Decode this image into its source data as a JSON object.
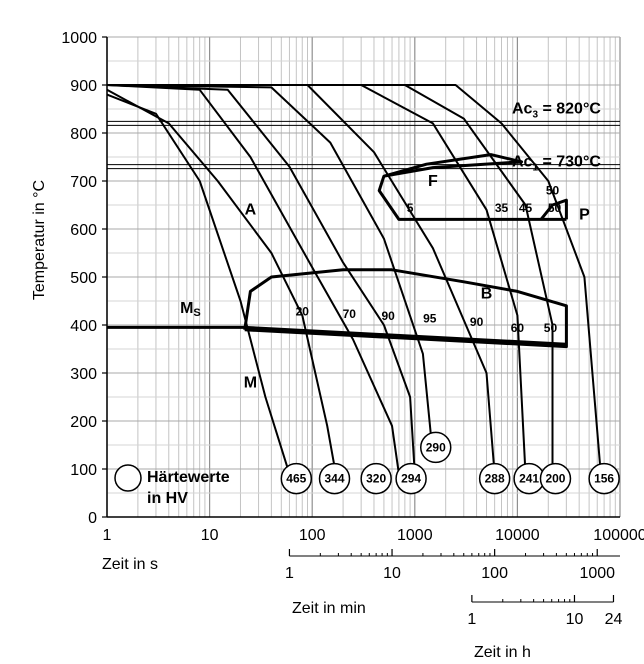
{
  "chart_data": {
    "type": "line",
    "title": "",
    "xlabel": "Zeit in s",
    "ylabel": "Temperatur in °C",
    "xscale": "log",
    "xlim": [
      1,
      100000
    ],
    "ylim": [
      0,
      1000
    ],
    "grid": true,
    "x_ticks": [
      "1",
      "10",
      "100",
      "1000",
      "10000",
      "100000"
    ],
    "y_ticks": [
      "0",
      "100",
      "200",
      "300",
      "400",
      "500",
      "600",
      "700",
      "800",
      "900",
      "1000"
    ],
    "secondary_axes": [
      {
        "label": "Zeit in min",
        "ticks": [
          {
            "text": "1",
            "x": 60
          },
          {
            "text": "10",
            "x": 600
          },
          {
            "text": "100",
            "x": 6000
          },
          {
            "text": "1000",
            "x": 60000
          }
        ]
      },
      {
        "label": "Zeit in h",
        "ticks": [
          {
            "text": "1",
            "x": 3600
          },
          {
            "text": "10",
            "x": 36000
          },
          {
            "text": "24",
            "x": 86400
          }
        ]
      }
    ],
    "hlines": [
      {
        "y": 820,
        "label": "Ac3 = 820°C",
        "text_main": "Ac",
        "text_sub": "3",
        "text_rest": " = 820°C"
      },
      {
        "y": 730,
        "label": "Ac1 = 730°C",
        "text_main": "Ac",
        "text_sub": "1",
        "text_rest": " = 730°C"
      }
    ],
    "series": [
      {
        "points": [
          [
            1,
            880
          ],
          [
            3,
            840
          ],
          [
            8,
            700
          ],
          [
            20,
            450
          ],
          [
            35,
            250
          ],
          [
            60,
            90
          ]
        ]
      },
      {
        "points": [
          [
            1,
            890
          ],
          [
            4,
            820
          ],
          [
            12,
            700
          ],
          [
            40,
            550
          ],
          [
            80,
            420
          ],
          [
            140,
            190
          ],
          [
            170,
            90
          ]
        ]
      },
      {
        "points": [
          [
            1,
            900
          ],
          [
            8,
            890
          ],
          [
            25,
            750
          ],
          [
            100,
            520
          ],
          [
            250,
            370
          ],
          [
            600,
            190
          ],
          [
            700,
            90
          ]
        ]
      },
      {
        "points": [
          [
            1,
            900
          ],
          [
            15,
            890
          ],
          [
            60,
            730
          ],
          [
            200,
            530
          ],
          [
            500,
            400
          ],
          [
            900,
            250
          ],
          [
            1000,
            90
          ]
        ]
      },
      {
        "points": [
          [
            1,
            900
          ],
          [
            40,
            895
          ],
          [
            150,
            780
          ],
          [
            500,
            580
          ],
          [
            1200,
            340
          ],
          [
            1450,
            160
          ]
        ]
      },
      {
        "points": [
          [
            1,
            900
          ],
          [
            90,
            900
          ],
          [
            400,
            760
          ],
          [
            1500,
            560
          ],
          [
            5000,
            300
          ],
          [
            6000,
            90
          ]
        ]
      },
      {
        "points": [
          [
            1,
            900
          ],
          [
            300,
            900
          ],
          [
            1500,
            820
          ],
          [
            5000,
            640
          ],
          [
            10000,
            420
          ],
          [
            12000,
            90
          ]
        ]
      },
      {
        "points": [
          [
            1,
            900
          ],
          [
            800,
            900
          ],
          [
            3000,
            830
          ],
          [
            12000,
            650
          ],
          [
            22000,
            400
          ],
          [
            22000,
            90
          ]
        ]
      },
      {
        "points": [
          [
            1,
            900
          ],
          [
            2500,
            900
          ],
          [
            7000,
            820
          ],
          [
            20000,
            700
          ],
          [
            45000,
            500
          ],
          [
            65000,
            90
          ]
        ]
      }
    ],
    "regions": [
      {
        "name": "A",
        "label_at": [
          25,
          630
        ]
      },
      {
        "name": "F",
        "label_at": [
          1500,
          690
        ],
        "boundary": [
          [
            500,
            710
          ],
          [
            1300,
            735
          ],
          [
            5500,
            755
          ],
          [
            11000,
            740
          ],
          [
            1500,
            728
          ],
          [
            500,
            710
          ],
          [
            450,
            680
          ],
          [
            700,
            620
          ],
          [
            30000,
            620
          ]
        ]
      },
      {
        "name": "P",
        "label_at": [
          45000,
          620
        ],
        "boundary": [
          [
            17000,
            620
          ],
          [
            22000,
            650
          ],
          [
            30000,
            660
          ],
          [
            30000,
            620
          ]
        ]
      },
      {
        "name": "B",
        "label_at": [
          5000,
          455
        ],
        "boundary": [
          [
            22,
            390
          ],
          [
            25,
            470
          ],
          [
            40,
            500
          ],
          [
            200,
            515
          ],
          [
            600,
            515
          ],
          [
            3000,
            490
          ],
          [
            10000,
            470
          ],
          [
            30000,
            440
          ],
          [
            30000,
            355
          ],
          [
            22,
            390
          ]
        ]
      },
      {
        "name": "Ms",
        "label": "MS",
        "label_at": [
          6.5,
          425
        ],
        "line": [
          [
            1,
            395
          ],
          [
            22,
            395
          ],
          [
            30000,
            360
          ]
        ]
      },
      {
        "name": "M",
        "label_at": [
          25,
          270
        ]
      }
    ],
    "percent_labels": [
      {
        "text": "5",
        "at": [
          900,
          635
        ]
      },
      {
        "text": "35",
        "at": [
          7000,
          635
        ]
      },
      {
        "text": "45",
        "at": [
          12000,
          635
        ]
      },
      {
        "text": "50",
        "at": [
          22000,
          672
        ]
      },
      {
        "text": "50",
        "at": [
          23000,
          635
        ]
      },
      {
        "text": "20",
        "at": [
          80,
          420
        ]
      },
      {
        "text": "70",
        "at": [
          230,
          415
        ]
      },
      {
        "text": "90",
        "at": [
          550,
          410
        ]
      },
      {
        "text": "95",
        "at": [
          1400,
          405
        ]
      },
      {
        "text": "90",
        "at": [
          4000,
          398
        ]
      },
      {
        "text": "60",
        "at": [
          10000,
          385
        ]
      },
      {
        "text": "50",
        "at": [
          21000,
          385
        ]
      }
    ],
    "hardness": {
      "legend_line1": "Härtewerte",
      "legend_line2": "in HV",
      "values": [
        {
          "text": "465",
          "at": [
            70,
            80
          ]
        },
        {
          "text": "344",
          "at": [
            165,
            80
          ]
        },
        {
          "text": "320",
          "at": [
            420,
            80
          ]
        },
        {
          "text": "294",
          "at": [
            920,
            80
          ]
        },
        {
          "text": "290",
          "at": [
            1600,
            145
          ]
        },
        {
          "text": "288",
          "at": [
            6000,
            80
          ]
        },
        {
          "text": "241",
          "at": [
            13000,
            80
          ]
        },
        {
          "text": "200",
          "at": [
            23500,
            80
          ]
        },
        {
          "text": "156",
          "at": [
            70000,
            80
          ]
        }
      ]
    }
  }
}
